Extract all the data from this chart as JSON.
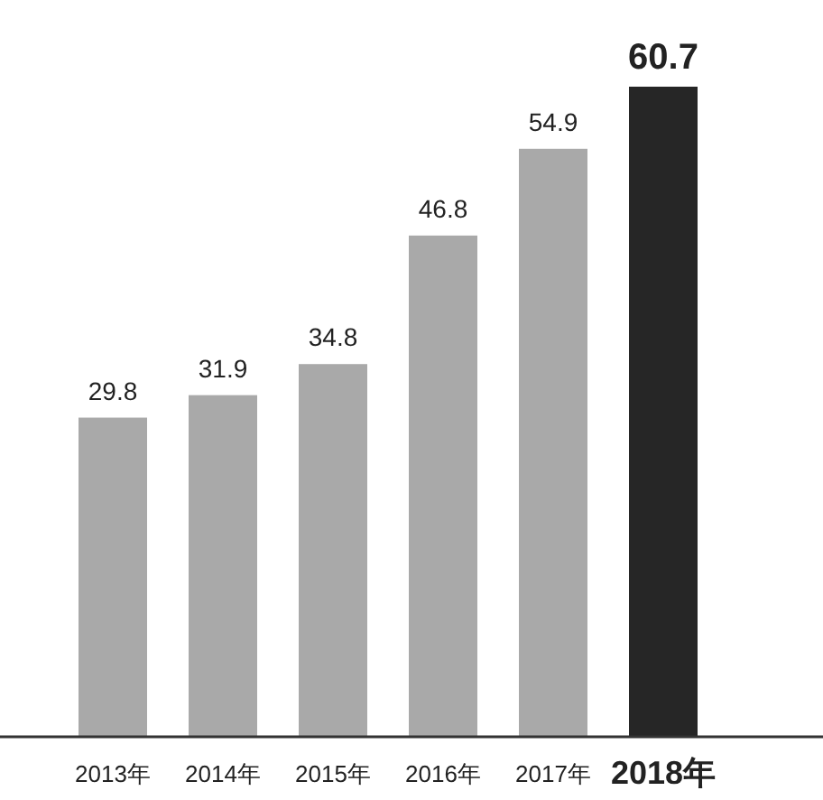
{
  "chart_data": {
    "type": "bar",
    "categories": [
      "2013年",
      "2014年",
      "2015年",
      "2016年",
      "2017年",
      "2018年"
    ],
    "values": [
      29.8,
      31.9,
      34.8,
      46.8,
      54.9,
      60.7
    ],
    "colors": [
      "#a9a9a9",
      "#a9a9a9",
      "#a9a9a9",
      "#a9a9a9",
      "#a9a9a9",
      "#262626"
    ],
    "data_labels": true
  }
}
